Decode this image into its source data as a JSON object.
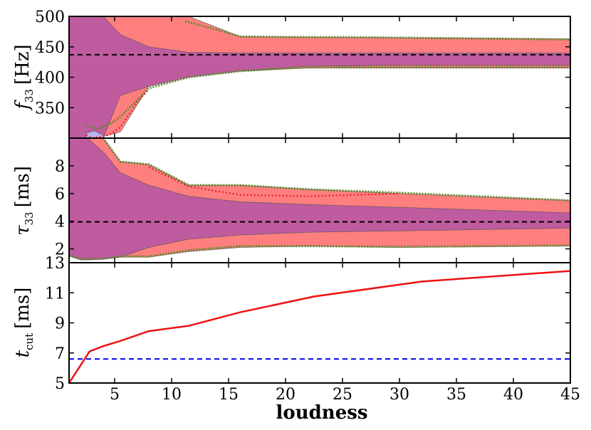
{
  "chart_data": [
    {
      "type": "area",
      "panel": "top",
      "ylabel": "f₃₃ [Hz]",
      "ylabel_main": "f",
      "ylabel_sub": "33",
      "ylabel_unit": "[Hz]",
      "ylim": [
        300,
        500
      ],
      "yticks": [
        350,
        400,
        450,
        500
      ],
      "reference_line": {
        "value": 437,
        "color": "#000000",
        "style": "dashed"
      },
      "colors": {
        "red_band": "#ff7f7f",
        "purple_band": "#bf5b9f",
        "blue_band": "#b8b4ee",
        "contour": "#5b8a2a"
      },
      "series": [
        {
          "name": "",
          "color": "#ff7f7f",
          "x": [
            1,
            2.5,
            3.5,
            5.5,
            8,
            11.5,
            16,
            22,
            30,
            45
          ],
          "upper": [
            500,
            500,
            500,
            500,
            500,
            500,
            467,
            466,
            465,
            463
          ],
          "lower": [
            300,
            300,
            300,
            310,
            385,
            403,
            410,
            415,
            415,
            415
          ]
        },
        {
          "name": "",
          "color": "#bf5b9f",
          "x": [
            1,
            2.5,
            4,
            5.5,
            8,
            11.5,
            16,
            22,
            30,
            45
          ],
          "upper": [
            500,
            500,
            500,
            470,
            450,
            441,
            440,
            440,
            440,
            440
          ],
          "lower": [
            300,
            300,
            300,
            370,
            385,
            400,
            410,
            418,
            420,
            420
          ]
        },
        {
          "name": "",
          "color": "#b8b4ee",
          "x": [
            2.5,
            3.2,
            4
          ],
          "upper": [
            308,
            312,
            305
          ],
          "lower": [
            300,
            300,
            300
          ]
        }
      ],
      "contour_upper": {
        "x": [
          11.2,
          12,
          14,
          16,
          20,
          25,
          30,
          35,
          40,
          45
        ],
        "y": [
          492,
          488,
          478,
          467,
          466,
          466,
          465,
          464,
          463,
          462
        ]
      },
      "contour_lower": {
        "x": [
          2.5,
          3.5,
          4.5,
          5.5,
          8,
          11.5,
          16,
          22,
          30,
          45
        ],
        "y": [
          322,
          315,
          322,
          335,
          382,
          400,
          410,
          417,
          417,
          417
        ]
      },
      "red_dotted": {
        "x": [
          2.5,
          3,
          4.5,
          5.5,
          7,
          8
        ],
        "y": [
          305,
          300,
          305,
          318,
          360,
          380
        ]
      }
    },
    {
      "type": "area",
      "panel": "middle",
      "ylabel_main": "τ",
      "ylabel_sub": "33",
      "ylabel_unit": "[ms]",
      "ylim": [
        1,
        10
      ],
      "yticks": [
        2,
        4,
        6,
        8
      ],
      "reference_line": {
        "value": 3.95,
        "color": "#000000",
        "style": "dashed"
      },
      "series": [
        {
          "name": "",
          "color": "#ff7f7f",
          "x": [
            1,
            2,
            2.6,
            4,
            5.5,
            8,
            11.5,
            16,
            22,
            30,
            45
          ],
          "upper": [
            10,
            10,
            10,
            10,
            8.3,
            8.1,
            6.6,
            6.6,
            6.3,
            6.0,
            5.5
          ],
          "lower": [
            1.5,
            1.2,
            1.2,
            1.25,
            1.4,
            1.4,
            1.8,
            2.1,
            2.2,
            2.1,
            2.2
          ]
        },
        {
          "name": "",
          "color": "#bf5b9f",
          "x": [
            1,
            2,
            2.6,
            4,
            5.5,
            8,
            11.5,
            16,
            22,
            30,
            45
          ],
          "upper": [
            10,
            10,
            10,
            9.0,
            7.5,
            6.6,
            5.8,
            5.4,
            5.2,
            5.0,
            4.6
          ],
          "lower": [
            1.5,
            1.2,
            1.2,
            1.25,
            1.4,
            2.1,
            2.7,
            3.0,
            3.2,
            3.3,
            3.5
          ]
        }
      ],
      "contour_upper": {
        "x": [
          4,
          5.5,
          8,
          11.5,
          16,
          22,
          30,
          45
        ],
        "y": [
          10,
          8.3,
          8.1,
          6.6,
          6.6,
          6.3,
          6.05,
          5.5
        ]
      },
      "contour_lower": {
        "x": [
          1,
          2,
          2.6,
          4,
          5.5,
          8,
          11.5,
          16,
          22,
          30,
          45
        ],
        "y": [
          1.5,
          1.3,
          1.25,
          1.3,
          1.45,
          1.45,
          1.9,
          2.2,
          2.2,
          2.15,
          2.25
        ]
      },
      "red_dotted": {
        "x": [
          8,
          11.5,
          16,
          22,
          30
        ],
        "y": [
          7.9,
          6.5,
          5.9,
          5.8,
          6.0
        ]
      }
    },
    {
      "type": "line",
      "panel": "bottom",
      "ylabel_main": "t",
      "ylabel_sub": "cut",
      "ylabel_unit": "[ms]",
      "xlabel": "loudness",
      "xlim": [
        1,
        45
      ],
      "xticks": [
        5,
        10,
        15,
        20,
        25,
        30,
        35,
        40,
        45
      ],
      "ylim": [
        5,
        13
      ],
      "yticks": [
        5,
        7,
        9,
        11,
        13
      ],
      "reference_line": {
        "value": 6.6,
        "color": "#0000ee",
        "style": "dashed"
      },
      "series": [
        {
          "name": "",
          "color": "#ee1111",
          "x": [
            1,
            2.8,
            4,
            5.5,
            8,
            11.5,
            16,
            22.5,
            32,
            45
          ],
          "y": [
            5.0,
            7.1,
            7.45,
            7.8,
            8.45,
            8.8,
            9.7,
            10.75,
            11.75,
            12.45
          ]
        }
      ]
    }
  ]
}
